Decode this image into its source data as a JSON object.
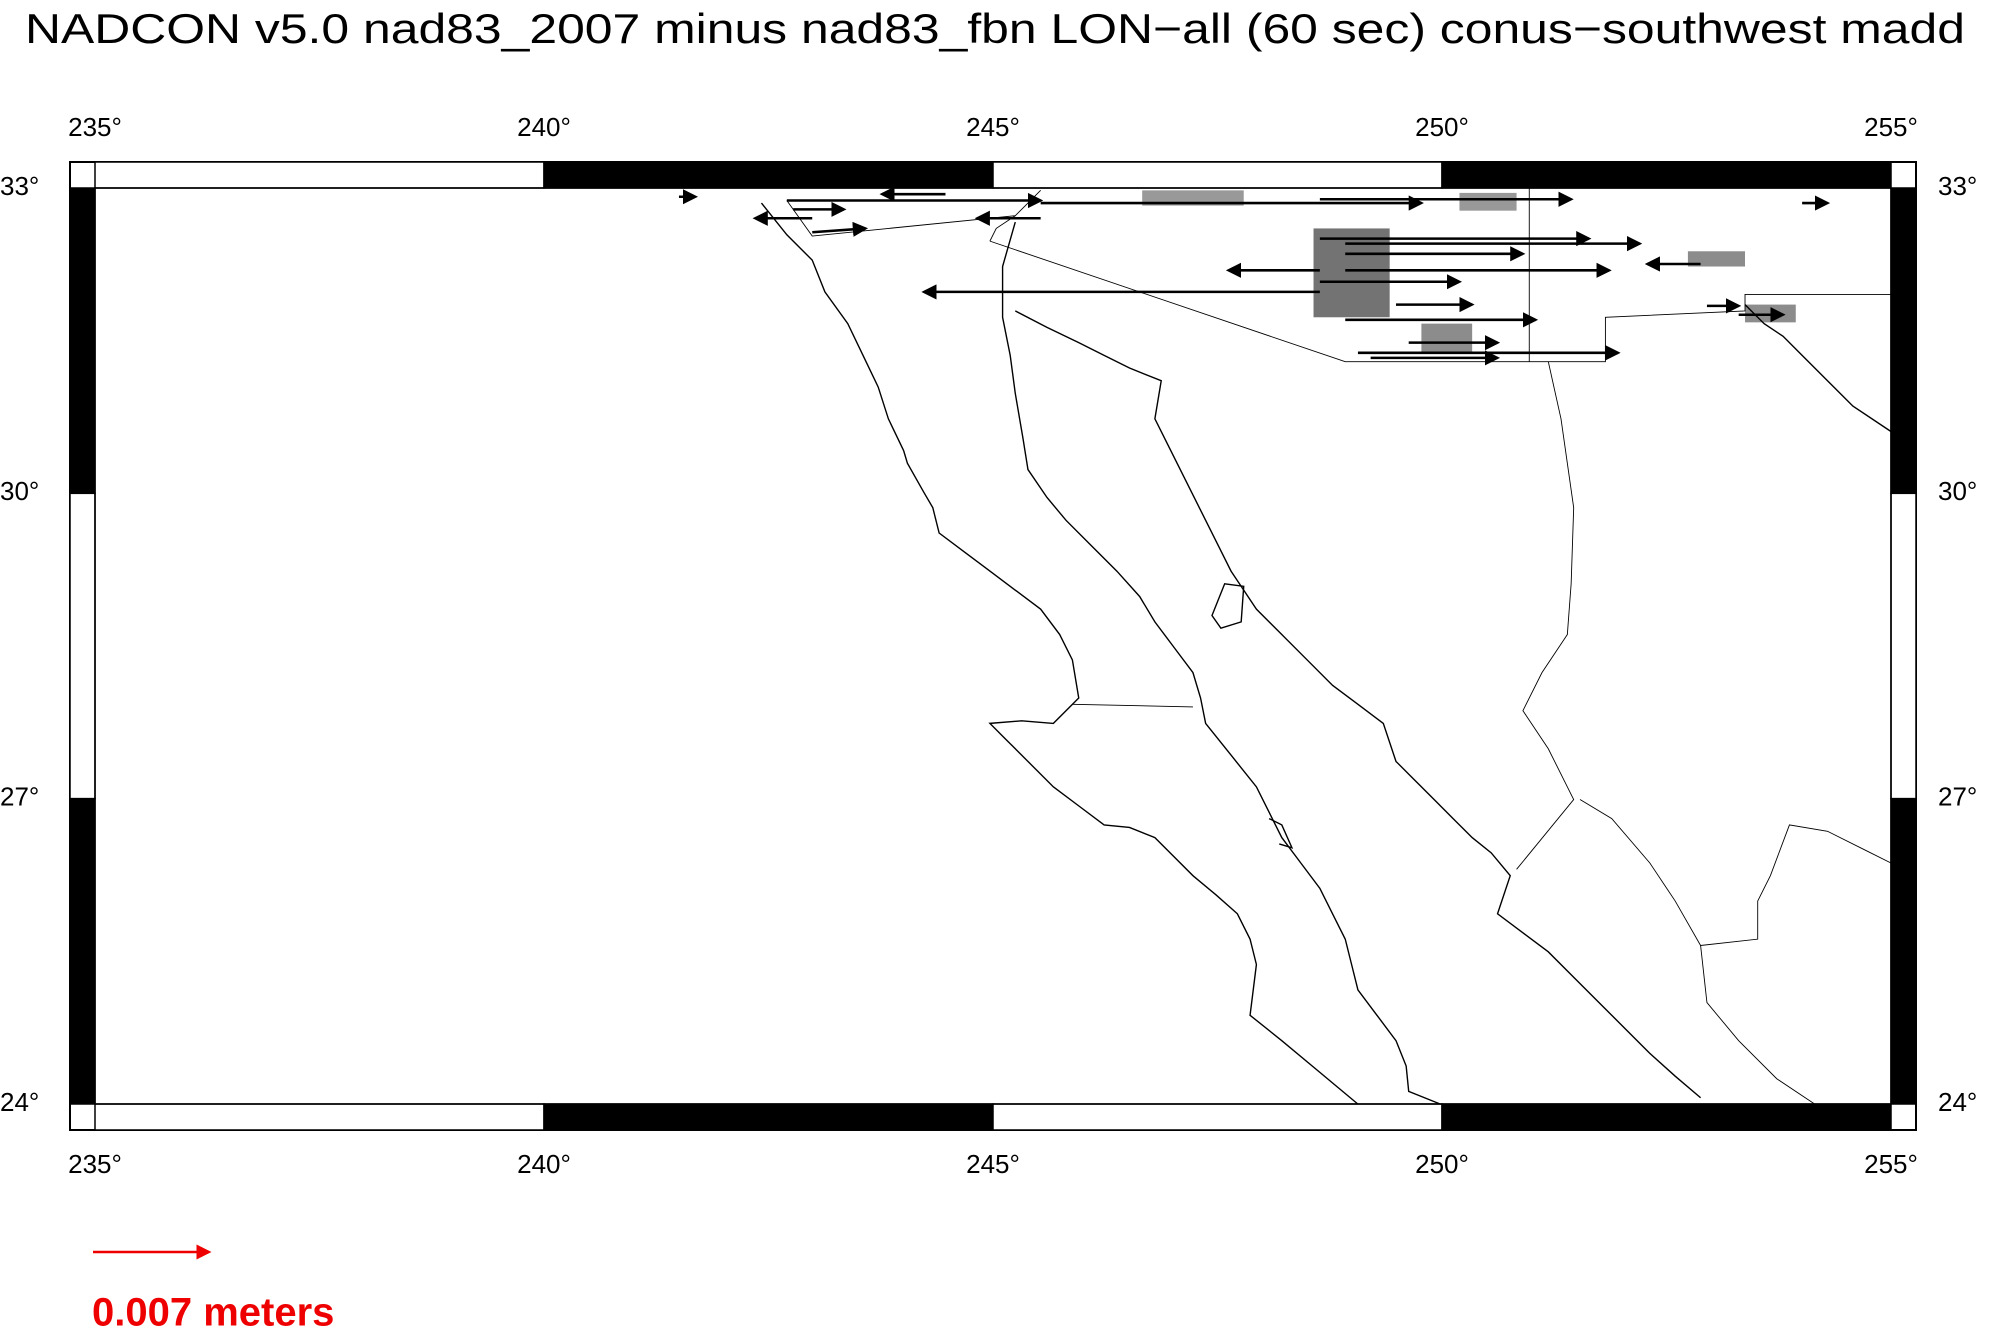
{
  "map": {
    "title": "NADCON v5.0 nad83_2007 minus nad83_fbn LON−all (60 sec) conus−southwest madd",
    "lon_labels": [
      "235°",
      "240°",
      "245°",
      "250°",
      "255°"
    ],
    "lat_labels": [
      "33°",
      "30°",
      "27°",
      "24°"
    ],
    "legend_label": "0.007 meters"
  }
}
